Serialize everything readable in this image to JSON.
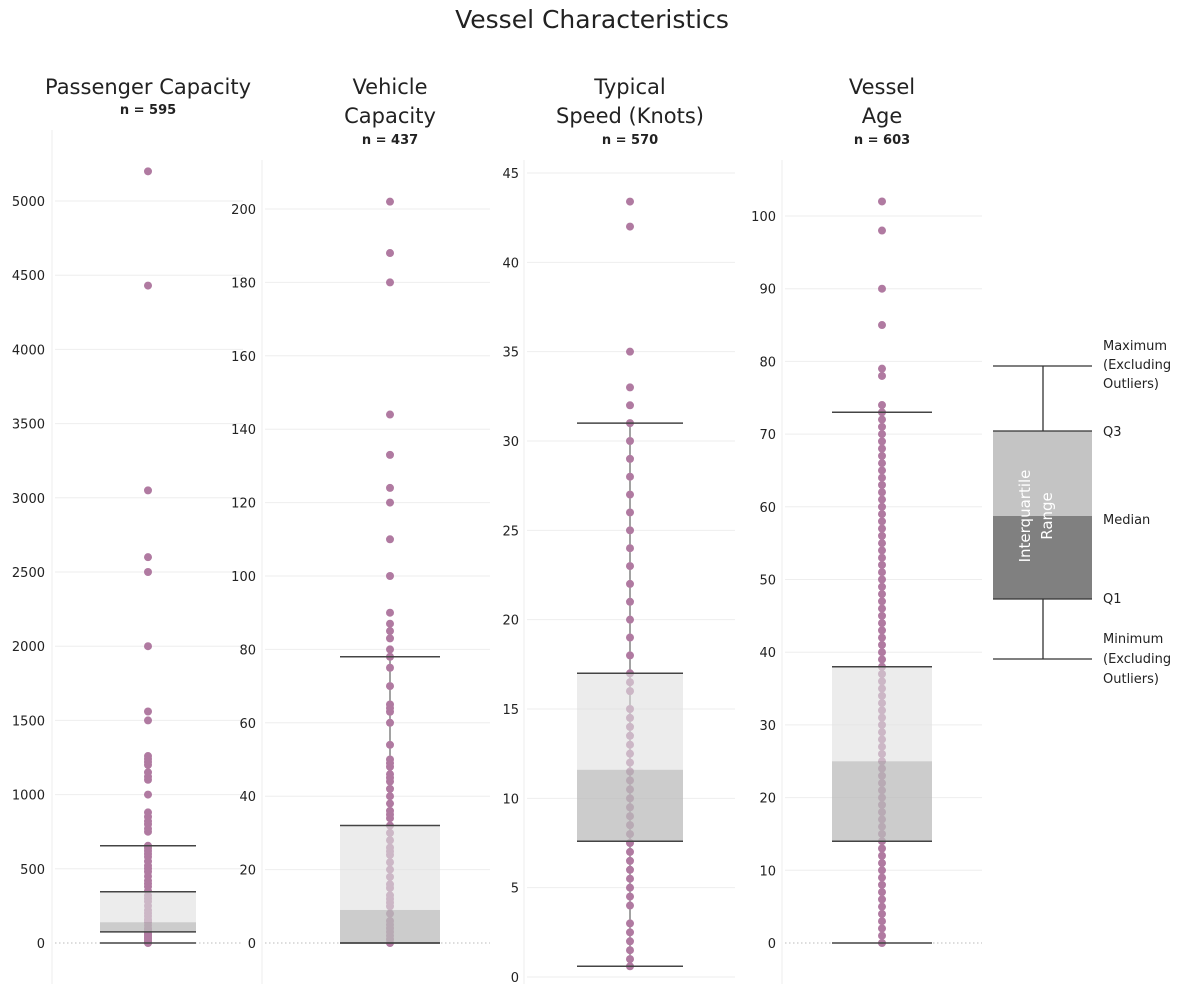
{
  "chart_data": {
    "type": "box",
    "title": "Vessel Characteristics",
    "grid": true,
    "point_color": "#b07aa1",
    "box_upper_color": "#e0e0e0",
    "box_lower_color": "#bbbbbb",
    "panels": [
      {
        "title_lines": [
          "Passenger Capacity"
        ],
        "n_label": "n = 595",
        "ticks": [
          0,
          500,
          1000,
          1500,
          2000,
          2500,
          3000,
          3500,
          4000,
          4500,
          5000
        ],
        "stats": {
          "min": 0,
          "q1": 75,
          "median": 140,
          "q3": 345,
          "max": 655
        },
        "points": [
          0,
          5,
          10,
          20,
          30,
          40,
          50,
          60,
          70,
          80,
          90,
          100,
          120,
          140,
          150,
          160,
          180,
          200,
          220,
          250,
          280,
          300,
          320,
          350,
          380,
          400,
          420,
          450,
          480,
          500,
          520,
          550,
          580,
          600,
          620,
          640,
          655,
          750,
          770,
          800,
          820,
          850,
          880,
          1000,
          1100,
          1120,
          1150,
          1200,
          1220,
          1240,
          1260,
          1500,
          1560,
          2000,
          2500,
          2600,
          3050,
          4430,
          5200
        ]
      },
      {
        "title_lines": [
          "Vehicle",
          "Capacity"
        ],
        "n_label": "n = 437",
        "ticks": [
          0,
          20,
          40,
          60,
          80,
          100,
          120,
          140,
          160,
          180,
          200
        ],
        "stats": {
          "min": 0,
          "q1": 0,
          "median": 9,
          "q3": 32,
          "max": 78
        },
        "points": [
          0,
          1,
          2,
          3,
          4,
          5,
          6,
          8,
          10,
          11,
          12,
          13,
          15,
          16,
          18,
          20,
          22,
          24,
          25,
          26,
          28,
          30,
          32,
          34,
          35,
          36,
          38,
          40,
          42,
          44,
          45,
          46,
          48,
          49,
          50,
          54,
          60,
          63,
          64,
          65,
          70,
          75,
          78,
          80,
          83,
          85,
          87,
          90,
          100,
          110,
          120,
          124,
          133,
          144,
          180,
          188,
          202
        ]
      },
      {
        "title_lines": [
          "Typical",
          "Speed (Knots)"
        ],
        "n_label": "n = 570",
        "ticks": [
          0,
          5,
          10,
          15,
          20,
          25,
          30,
          35,
          40,
          45
        ],
        "stats": {
          "min": 0.6,
          "q1": 7.6,
          "median": 11.6,
          "q3": 17,
          "max": 31
        },
        "points": [
          0.6,
          1,
          1.5,
          2,
          2.5,
          3,
          4,
          4.5,
          5,
          5.5,
          6,
          6.5,
          7,
          7.5,
          8,
          8.5,
          9,
          9.5,
          10,
          10.5,
          11,
          11.5,
          12,
          12.5,
          13,
          13.5,
          14,
          14.5,
          15,
          16,
          16.5,
          17,
          18,
          19,
          20,
          21,
          22,
          23,
          24,
          25,
          26,
          27,
          28,
          29,
          30,
          31,
          32,
          33,
          35,
          42,
          43.4
        ]
      },
      {
        "title_lines": [
          "Vessel",
          "Age"
        ],
        "n_label": "n = 603",
        "ticks": [
          0,
          10,
          20,
          30,
          40,
          50,
          60,
          70,
          80,
          90,
          100
        ],
        "stats": {
          "min": 0,
          "q1": 14,
          "median": 25,
          "q3": 38,
          "max": 73
        },
        "points": [
          0,
          1,
          2,
          3,
          4,
          5,
          6,
          7,
          8,
          9,
          10,
          11,
          12,
          13,
          14,
          15,
          16,
          17,
          18,
          19,
          20,
          21,
          22,
          23,
          24,
          25,
          26,
          27,
          28,
          29,
          30,
          31,
          32,
          33,
          34,
          35,
          36,
          37,
          38,
          39,
          40,
          41,
          42,
          43,
          44,
          45,
          46,
          47,
          48,
          49,
          50,
          51,
          52,
          53,
          54,
          55,
          56,
          57,
          58,
          59,
          60,
          61,
          62,
          63,
          64,
          65,
          66,
          67,
          68,
          69,
          70,
          71,
          72,
          73,
          74,
          78,
          79,
          85,
          90,
          98,
          102
        ]
      }
    ],
    "legend": {
      "max_label": [
        "Maximum",
        "(Excluding",
        "Outliers)"
      ],
      "q3_label": "Q3",
      "median_label": "Median",
      "q1_label": "Q1",
      "min_label": [
        "Minimum",
        "(Excluding",
        "Outliers)"
      ],
      "iqr_label": [
        "Interquartile",
        "Range"
      ]
    }
  }
}
